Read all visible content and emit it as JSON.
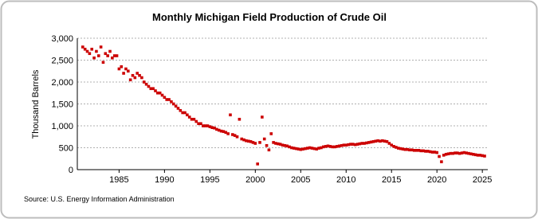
{
  "chart_data": {
    "type": "scatter",
    "title": "Monthly Michigan Field Production of Crude Oil",
    "y_label": "Thousand Barrels",
    "source": "Source: U.S. Energy Information Administration",
    "color": "#cc0000",
    "grid": true,
    "xlim": [
      1980.4,
      2025.6
    ],
    "xticks": [
      1985,
      1990,
      1995,
      2000,
      2005,
      2010,
      2015,
      2020,
      2025
    ],
    "ylim": [
      0,
      3000
    ],
    "yticks": [
      0,
      500,
      {
        "value": 1000,
        "label": "1,000"
      },
      {
        "value": 1500,
        "label": "1,500"
      },
      {
        "value": 2000,
        "label": "2,000"
      },
      {
        "value": 2500,
        "label": "2,500"
      },
      {
        "value": 3000,
        "label": "3,000"
      }
    ],
    "x": [
      1981,
      1981.25,
      1981.5,
      1981.75,
      1982,
      1982.25,
      1982.5,
      1982.75,
      1983,
      1983.25,
      1983.5,
      1983.75,
      1984,
      1984.25,
      1984.5,
      1984.75,
      1985,
      1985.25,
      1985.5,
      1985.75,
      1986,
      1986.25,
      1986.5,
      1986.75,
      1987,
      1987.25,
      1987.5,
      1987.75,
      1988,
      1988.25,
      1988.5,
      1988.75,
      1989,
      1989.25,
      1989.5,
      1989.75,
      1990,
      1990.25,
      1990.5,
      1990.75,
      1991,
      1991.25,
      1991.5,
      1991.75,
      1992,
      1992.25,
      1992.5,
      1992.75,
      1993,
      1993.25,
      1993.5,
      1993.75,
      1994,
      1994.25,
      1994.5,
      1994.75,
      1995,
      1995.25,
      1995.5,
      1995.75,
      1996,
      1996.25,
      1996.5,
      1996.75,
      1997,
      1997.25,
      1997.5,
      1997.75,
      1998,
      1998.25,
      1998.5,
      1998.75,
      1999,
      1999.25,
      1999.5,
      1999.75,
      2000,
      2000.25,
      2000.5,
      2000.75,
      2001,
      2001.25,
      2001.5,
      2001.75,
      2002,
      2002.25,
      2002.5,
      2002.75,
      2003,
      2003.25,
      2003.5,
      2003.75,
      2004,
      2004.25,
      2004.5,
      2004.75,
      2005,
      2005.25,
      2005.5,
      2005.75,
      2006,
      2006.25,
      2006.5,
      2006.75,
      2007,
      2007.25,
      2007.5,
      2007.75,
      2008,
      2008.25,
      2008.5,
      2008.75,
      2009,
      2009.25,
      2009.5,
      2009.75,
      2010,
      2010.25,
      2010.5,
      2010.75,
      2011,
      2011.25,
      2011.5,
      2011.75,
      2012,
      2012.25,
      2012.5,
      2012.75,
      2013,
      2013.25,
      2013.5,
      2013.75,
      2014,
      2014.25,
      2014.5,
      2014.75,
      2015,
      2015.25,
      2015.5,
      2015.75,
      2016,
      2016.25,
      2016.5,
      2016.75,
      2017,
      2017.25,
      2017.5,
      2017.75,
      2018,
      2018.25,
      2018.5,
      2018.75,
      2019,
      2019.25,
      2019.5,
      2019.75,
      2020,
      2020.25,
      2020.5,
      2020.75,
      2021,
      2021.25,
      2021.5,
      2021.75,
      2022,
      2022.25,
      2022.5,
      2022.75,
      2023,
      2023.25,
      2023.5,
      2023.75,
      2024,
      2024.25,
      2024.5,
      2024.75,
      2025,
      2025.25
    ],
    "values": [
      2800,
      2750,
      2700,
      2650,
      2750,
      2550,
      2700,
      2600,
      2800,
      2450,
      2650,
      2600,
      2700,
      2550,
      2600,
      2600,
      2300,
      2350,
      2200,
      2300,
      2250,
      2050,
      2150,
      2100,
      2200,
      2150,
      2100,
      2000,
      1950,
      1900,
      1850,
      1850,
      1800,
      1750,
      1750,
      1700,
      1650,
      1600,
      1600,
      1550,
      1500,
      1450,
      1400,
      1350,
      1300,
      1300,
      1250,
      1200,
      1150,
      1150,
      1100,
      1050,
      1050,
      1000,
      1000,
      1000,
      980,
      960,
      950,
      920,
      900,
      880,
      870,
      850,
      820,
      1250,
      800,
      780,
      750,
      1150,
      700,
      680,
      660,
      650,
      640,
      620,
      600,
      130,
      620,
      1200,
      700,
      550,
      450,
      820,
      620,
      600,
      590,
      580,
      560,
      550,
      540,
      520,
      500,
      490,
      480,
      470,
      460,
      470,
      480,
      490,
      500,
      490,
      480,
      470,
      490,
      500,
      520,
      530,
      540,
      530,
      520,
      520,
      530,
      540,
      550,
      560,
      560,
      570,
      580,
      580,
      570,
      580,
      590,
      600,
      600,
      610,
      620,
      630,
      640,
      650,
      660,
      650,
      660,
      650,
      640,
      600,
      560,
      530,
      510,
      490,
      480,
      470,
      460,
      460,
      450,
      450,
      440,
      440,
      440,
      430,
      430,
      420,
      420,
      410,
      400,
      400,
      390,
      300,
      180,
      330,
      350,
      360,
      370,
      370,
      380,
      380,
      370,
      380,
      390,
      380,
      370,
      360,
      350,
      340,
      330,
      330,
      320,
      310
    ]
  }
}
